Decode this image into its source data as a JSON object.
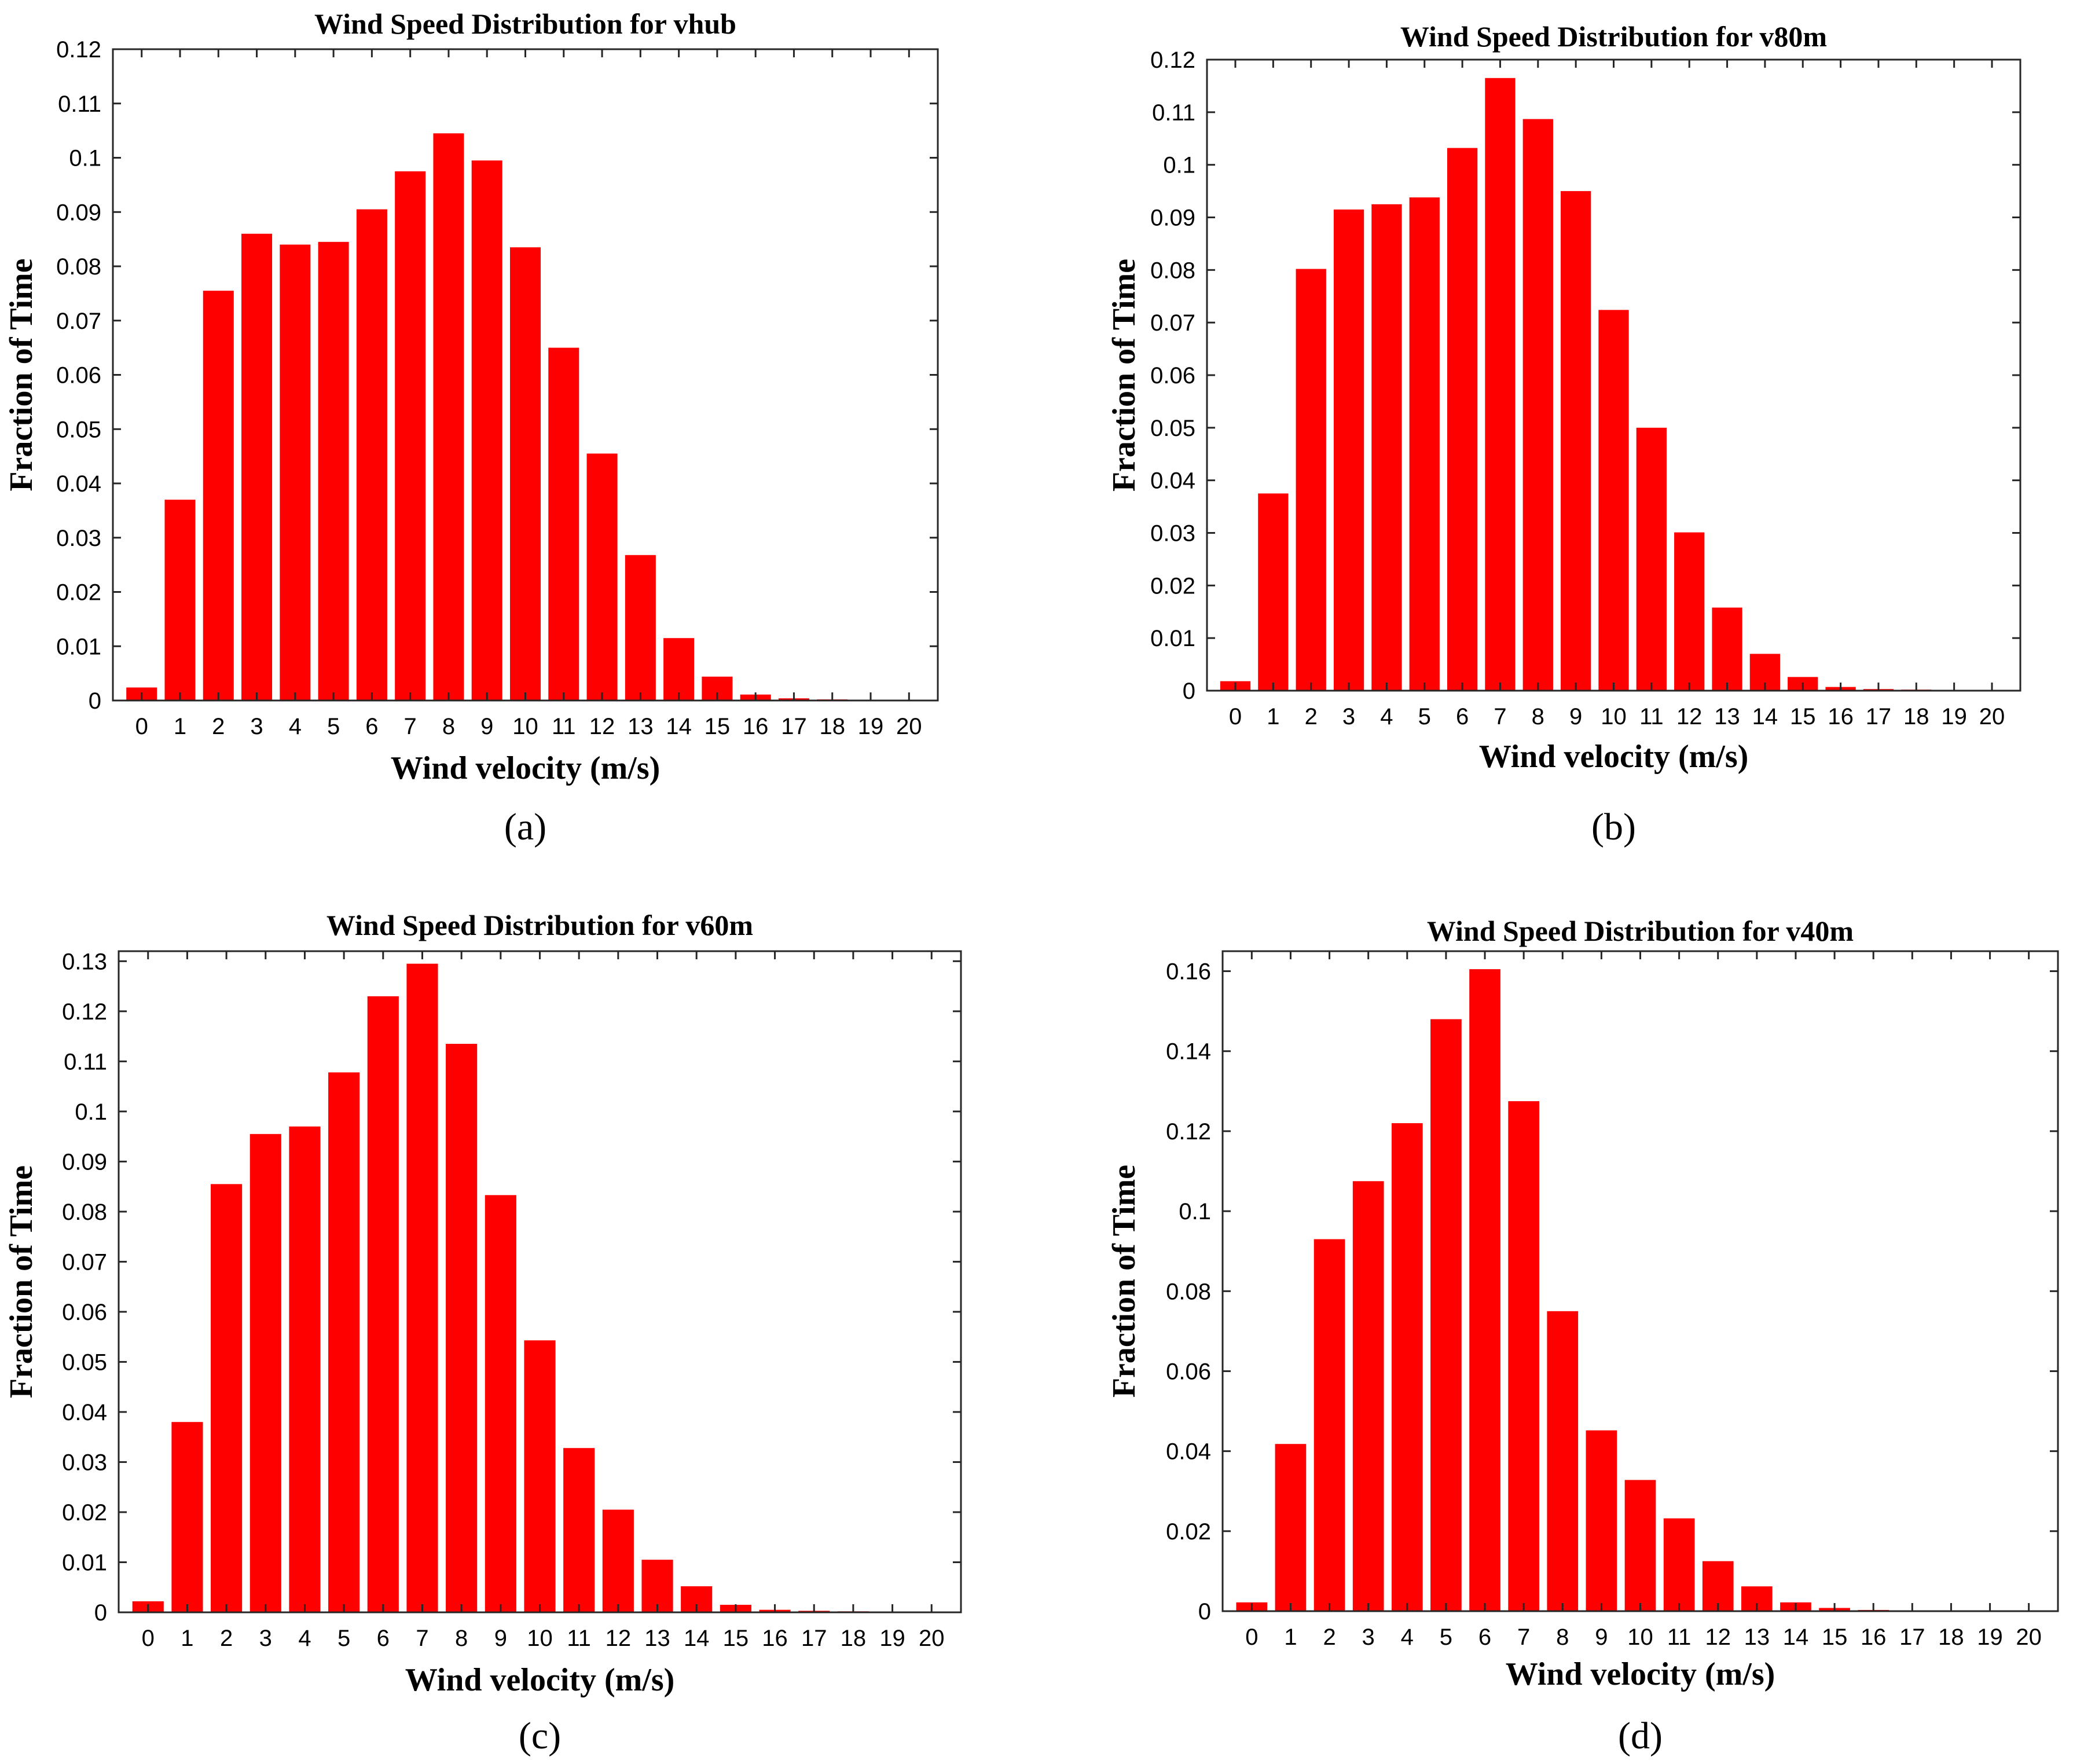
{
  "chart_data": [
    {
      "type": "bar",
      "panel_label": "(a)",
      "title": "Wind Speed Distribution for vhub",
      "xlabel": "Wind velocity (m/s)",
      "ylabel": "Fraction of Time",
      "categories": [
        "0",
        "1",
        "2",
        "3",
        "4",
        "5",
        "6",
        "7",
        "8",
        "9",
        "10",
        "11",
        "12",
        "13",
        "14",
        "15",
        "16",
        "17",
        "18",
        "19",
        "20"
      ],
      "values": [
        0.0024,
        0.037,
        0.0755,
        0.086,
        0.084,
        0.0845,
        0.0905,
        0.0975,
        0.1045,
        0.0995,
        0.0835,
        0.065,
        0.0455,
        0.0268,
        0.0115,
        0.0044,
        0.0011,
        0.0004,
        0.0002,
        0.0001,
        0.0001
      ],
      "ylim": [
        0,
        0.12
      ],
      "yticks": [
        "0",
        "0.01",
        "0.02",
        "0.03",
        "0.04",
        "0.05",
        "0.06",
        "0.07",
        "0.08",
        "0.09",
        "0.1",
        "0.11",
        "0.12"
      ],
      "bar_color": "#ff0000",
      "grid": false,
      "legend": "none"
    },
    {
      "type": "bar",
      "panel_label": "(b)",
      "title": "Wind Speed Distribution for v80m",
      "xlabel": "Wind velocity (m/s)",
      "ylabel": "Fraction of Time",
      "categories": [
        "0",
        "1",
        "2",
        "3",
        "4",
        "5",
        "6",
        "7",
        "8",
        "9",
        "10",
        "11",
        "12",
        "13",
        "14",
        "15",
        "16",
        "17",
        "18",
        "19",
        "20"
      ],
      "values": [
        0.0018,
        0.0375,
        0.0802,
        0.0915,
        0.0925,
        0.0938,
        0.1032,
        0.1165,
        0.1087,
        0.095,
        0.0724,
        0.05,
        0.0301,
        0.0158,
        0.007,
        0.0026,
        0.0007,
        0.0003,
        0.0002,
        0.0001,
        0.0001
      ],
      "ylim": [
        0,
        0.12
      ],
      "yticks": [
        "0",
        "0.01",
        "0.02",
        "0.03",
        "0.04",
        "0.05",
        "0.06",
        "0.07",
        "0.08",
        "0.09",
        "0.1",
        "0.11",
        "0.12"
      ],
      "bar_color": "#ff0000",
      "grid": false,
      "legend": "none"
    },
    {
      "type": "bar",
      "panel_label": "(c)",
      "title": "Wind Speed Distribution for v60m",
      "xlabel": "Wind velocity (m/s)",
      "ylabel": "Fraction of Time",
      "categories": [
        "0",
        "1",
        "2",
        "3",
        "4",
        "5",
        "6",
        "7",
        "8",
        "9",
        "10",
        "11",
        "12",
        "13",
        "14",
        "15",
        "16",
        "17",
        "18",
        "19",
        "20"
      ],
      "values": [
        0.0022,
        0.038,
        0.0855,
        0.0955,
        0.097,
        0.1078,
        0.123,
        0.1295,
        0.1135,
        0.0833,
        0.0543,
        0.0328,
        0.0205,
        0.0105,
        0.0052,
        0.0015,
        0.0005,
        0.0003,
        0.0002,
        0.0001,
        0.0001
      ],
      "ylim": [
        0,
        0.132
      ],
      "yticks": [
        "0",
        "0.01",
        "0.02",
        "0.03",
        "0.04",
        "0.05",
        "0.06",
        "0.07",
        "0.08",
        "0.09",
        "0.1",
        "0.11",
        "0.12",
        "0.13"
      ],
      "bar_color": "#ff0000",
      "grid": false,
      "legend": "none"
    },
    {
      "type": "bar",
      "panel_label": "(d)",
      "title": "Wind Speed Distribution for v40m",
      "xlabel": "Wind velocity (m/s)",
      "ylabel": "Fraction of Time",
      "categories": [
        "0",
        "1",
        "2",
        "3",
        "4",
        "5",
        "6",
        "7",
        "8",
        "9",
        "10",
        "11",
        "12",
        "13",
        "14",
        "15",
        "16",
        "17",
        "18",
        "19",
        "20"
      ],
      "values": [
        0.0022,
        0.0418,
        0.093,
        0.1075,
        0.122,
        0.148,
        0.1605,
        0.1275,
        0.075,
        0.0452,
        0.0328,
        0.0232,
        0.0125,
        0.0062,
        0.0022,
        0.0008,
        0.0003,
        0.0002,
        0.0001,
        0.0001,
        0.0001
      ],
      "ylim": [
        0,
        0.165
      ],
      "yticks": [
        "0",
        "0.02",
        "0.04",
        "0.06",
        "0.08",
        "0.1",
        "0.12",
        "0.14",
        "0.16"
      ],
      "bar_color": "#ff0000",
      "grid": false,
      "legend": "none"
    }
  ]
}
